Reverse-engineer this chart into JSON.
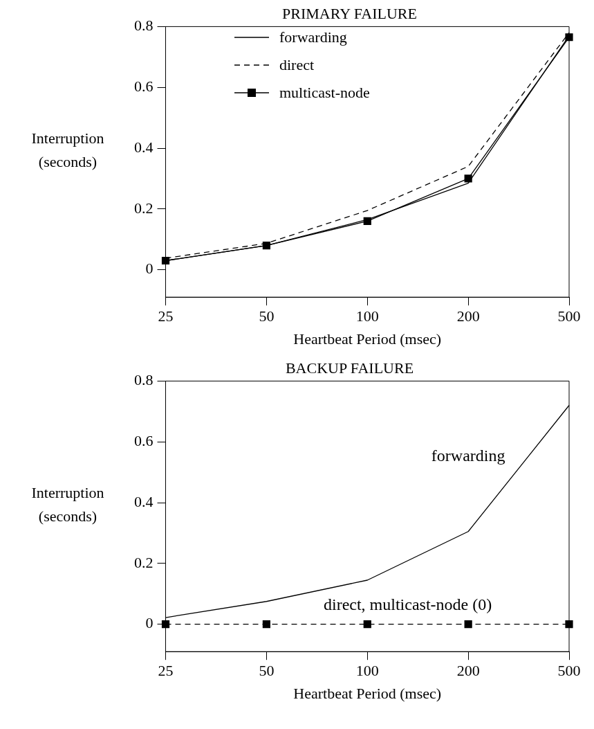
{
  "chart_data": [
    {
      "type": "line",
      "title": "PRIMARY FAILURE",
      "xlabel": "Heartbeat Period (msec)",
      "ylabel": "Interruption\n(seconds)",
      "categories": [
        "25",
        "50",
        "100",
        "200",
        "500"
      ],
      "ylim": [
        -0.09,
        0.8
      ],
      "yticks": [
        0,
        0.2,
        0.4,
        0.6,
        0.8
      ],
      "grid": false,
      "legend": "top left",
      "series": [
        {
          "name": "forwarding",
          "color": "#000000",
          "line_style": "solid",
          "marker": "none",
          "values": [
            0.03,
            0.08,
            0.165,
            0.285,
            0.77
          ]
        },
        {
          "name": "direct",
          "color": "#000000",
          "line_style": "dashed",
          "marker": "none",
          "values": [
            0.038,
            0.087,
            0.195,
            0.34,
            0.78
          ]
        },
        {
          "name": "multicast-node",
          "color": "#000000",
          "line_style": "solid",
          "marker": "square",
          "values": [
            0.03,
            0.08,
            0.16,
            0.3,
            0.765
          ]
        }
      ]
    },
    {
      "type": "line",
      "title": "BACKUP FAILURE",
      "xlabel": "Heartbeat Period (msec)",
      "ylabel": "Interruption\n(seconds)",
      "categories": [
        "25",
        "50",
        "100",
        "200",
        "500"
      ],
      "ylim": [
        -0.09,
        0.8
      ],
      "yticks": [
        0,
        0.2,
        0.4,
        0.6,
        0.8
      ],
      "grid": false,
      "legend": false,
      "annotations": [
        "forwarding",
        "direct, multicast-node (0)"
      ],
      "series": [
        {
          "color": "#000000",
          "line_style": "solid",
          "marker": "none",
          "values": [
            0.022,
            0.075,
            0.145,
            0.305,
            0.72
          ]
        },
        {
          "color": "#000000",
          "line_style": "dashed",
          "marker": "square",
          "values": [
            0,
            0,
            0,
            0,
            0
          ]
        }
      ]
    }
  ]
}
